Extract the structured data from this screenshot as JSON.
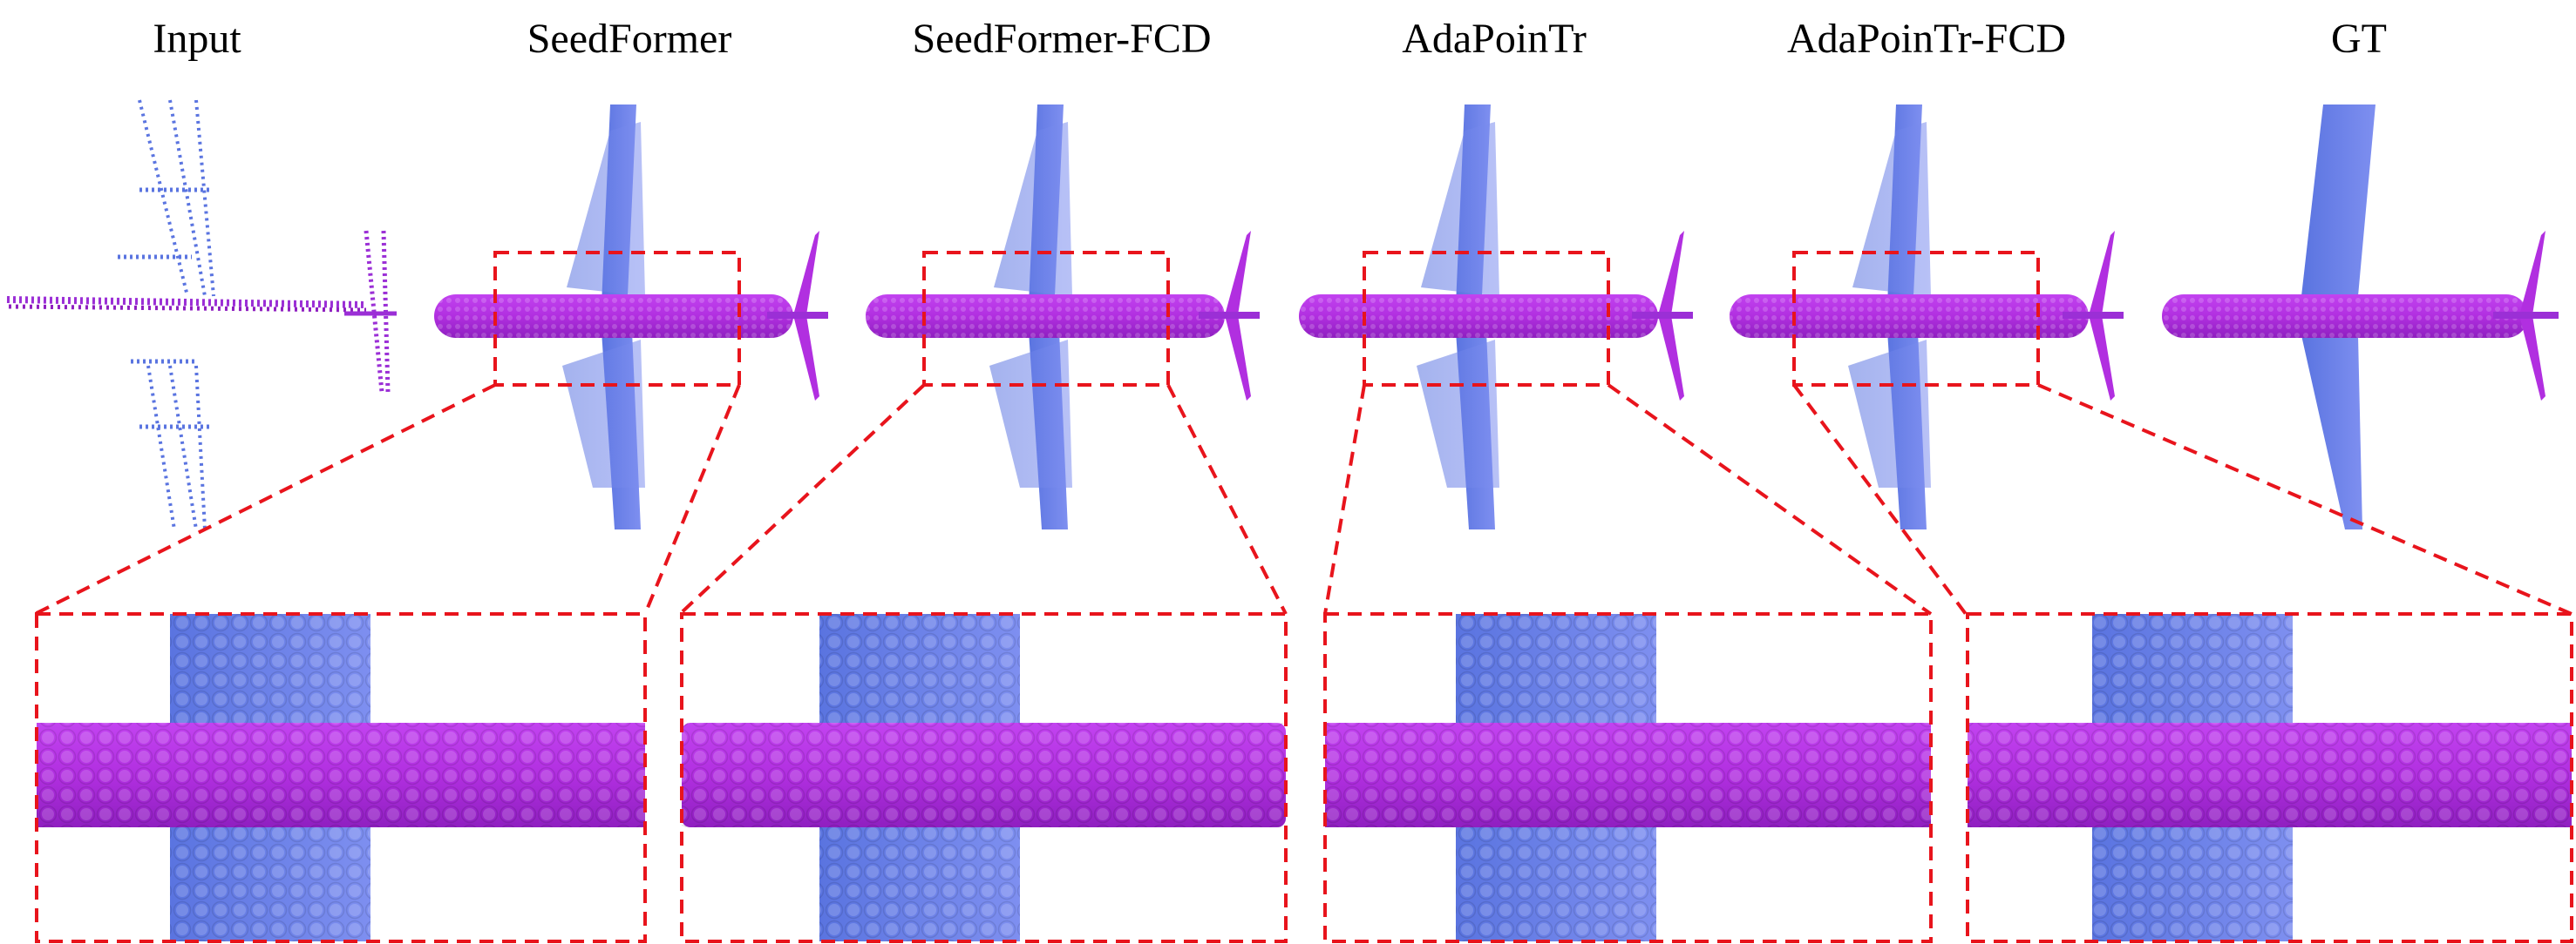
{
  "columns": [
    {
      "label": "Input"
    },
    {
      "label": "SeedFormer"
    },
    {
      "label": "SeedFormer-FCD"
    },
    {
      "label": "AdaPoinTr"
    },
    {
      "label": "AdaPoinTr-FCD"
    },
    {
      "label": "GT"
    }
  ],
  "colors": {
    "fuselage": "#b12fe0",
    "fuselage_dark": "#8f1fc0",
    "wing": "#6a7fe8",
    "wing_dark": "#4f6fd8",
    "zoom_box": "#e8141c"
  }
}
